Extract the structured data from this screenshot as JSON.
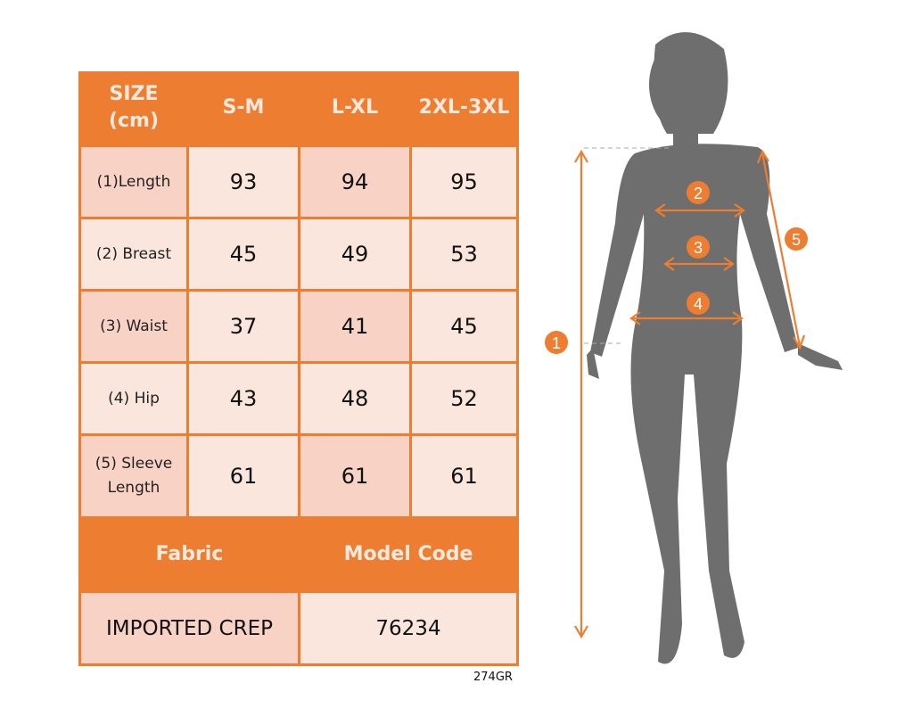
{
  "table": {
    "header": [
      "SIZE\n(cm)",
      "S-M",
      "L-XL",
      "2XL-3XL"
    ],
    "header_line1": "SIZE",
    "header_line2": "(cm)",
    "rows": [
      {
        "label": "(1)Length",
        "values": [
          "93",
          "94",
          "95"
        ]
      },
      {
        "label": "(2) Breast",
        "values": [
          "45",
          "49",
          "53"
        ]
      },
      {
        "label": "(3) Waist",
        "values": [
          "37",
          "41",
          "45"
        ]
      },
      {
        "label": "(4) Hip",
        "values": [
          "43",
          "48",
          "52"
        ]
      },
      {
        "label": "(5) Sleeve Length",
        "label_line1": "(5) Sleeve",
        "label_line2": "Length",
        "values": [
          "61",
          "61",
          "61"
        ]
      }
    ],
    "fabric_label": "Fabric",
    "model_code_label": "Model Code",
    "fabric_value": "IMPORTED CREP",
    "model_code_value": "76234"
  },
  "figure": {
    "markers": [
      "1",
      "2",
      "3",
      "4",
      "5"
    ]
  },
  "caption": "274GR",
  "colors": {
    "accent": "#ED7D31",
    "cell_dark": "#F8D3C5",
    "cell_light": "#FBE6DD",
    "silhouette": "#6E6E6E"
  }
}
